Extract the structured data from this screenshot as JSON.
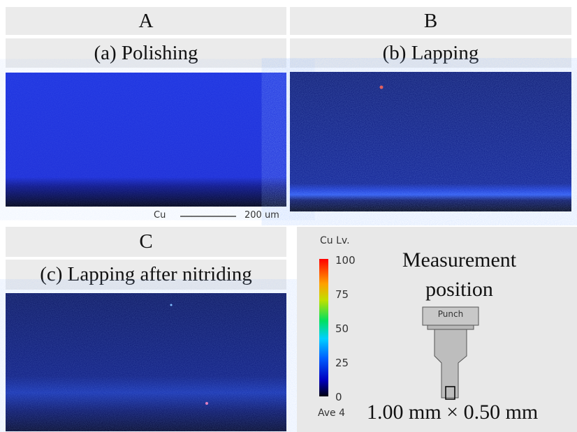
{
  "panels": [
    {
      "label": "A",
      "title": "(a) Polishing"
    },
    {
      "label": "B",
      "title": "(b) Lapping"
    },
    {
      "label": "C",
      "title": "(c) Lapping after nitriding"
    }
  ],
  "scale_bar": {
    "element": "Cu",
    "length": "200 um"
  },
  "color_scale": {
    "title": "Cu Lv.",
    "ticks": [
      100,
      75,
      50,
      25,
      0
    ],
    "footer": "Ave 4"
  },
  "measurement": {
    "title": "Measurement position",
    "part": "Punch",
    "size": "1.00 mm × 0.50 mm"
  }
}
